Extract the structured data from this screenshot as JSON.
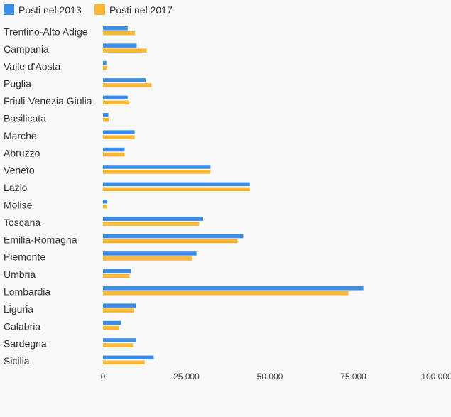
{
  "chart_data": {
    "type": "bar",
    "orientation": "horizontal",
    "legend_position": "top-left",
    "grid": false,
    "categories": [
      "Trentino-Alto Adige",
      "Campania",
      "Valle d'Aosta",
      "Puglia",
      "Friuli-Venezia Giulia",
      "Basilicata",
      "Marche",
      "Abruzzo",
      "Veneto",
      "Lazio",
      "Molise",
      "Toscana",
      "Emilia-Romagna",
      "Piemonte",
      "Umbria",
      "Lombardia",
      "Liguria",
      "Calabria",
      "Sardegna",
      "Sicilia"
    ],
    "series": [
      {
        "name": "Posti nel 2013",
        "color": "#3b8ee8",
        "values": [
          7400,
          10100,
          1000,
          12800,
          7400,
          1600,
          9500,
          6500,
          32200,
          44000,
          1300,
          30000,
          42000,
          28000,
          8400,
          78000,
          9900,
          5400,
          10000,
          15200
        ]
      },
      {
        "name": "Posti nel 2017",
        "color": "#fbb731",
        "values": [
          9600,
          13100,
          1300,
          14600,
          7900,
          1700,
          9500,
          6500,
          32200,
          44000,
          1300,
          28800,
          40300,
          26800,
          8000,
          73500,
          9300,
          4900,
          9000,
          12500
        ]
      }
    ],
    "xlim": [
      0,
      100000
    ],
    "xticks": [
      0,
      25000,
      50000,
      75000,
      100000
    ],
    "xtick_labels": [
      "0",
      "25.000",
      "50.000",
      "75.000",
      "100.000"
    ]
  }
}
